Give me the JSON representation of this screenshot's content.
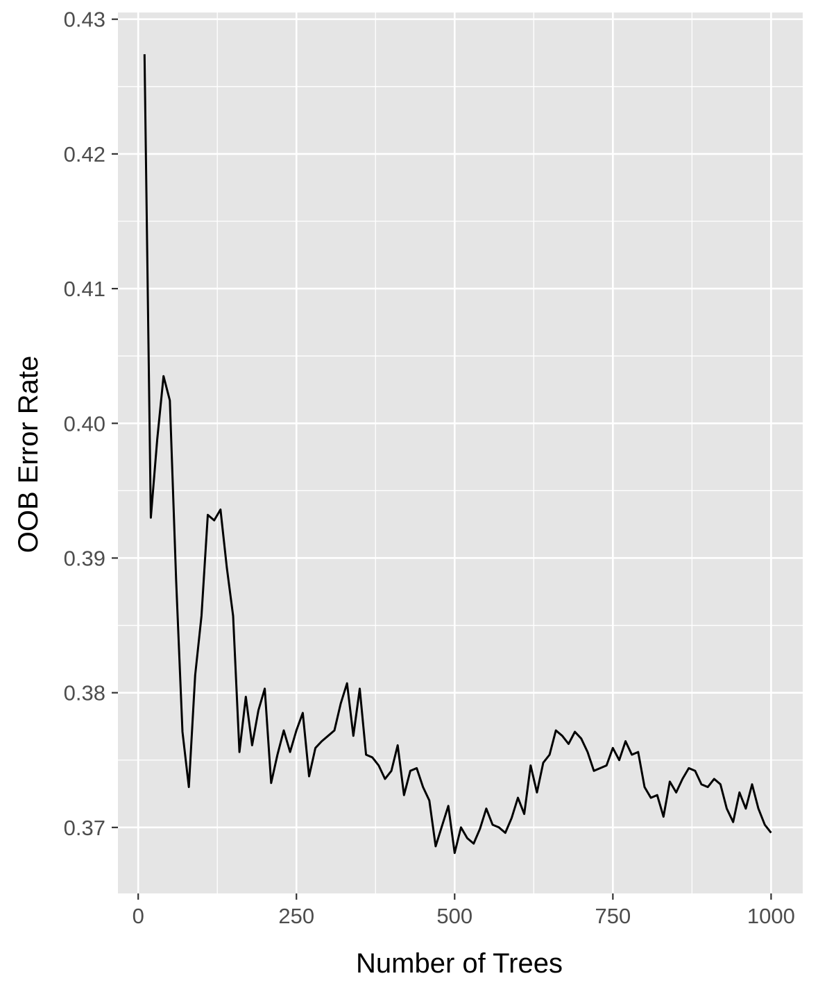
{
  "chart_data": {
    "type": "line",
    "title": "",
    "xlabel": "Number of Trees",
    "ylabel": "OOB Error Rate",
    "xlim": [
      -32,
      1050
    ],
    "ylim": [
      0.3651,
      0.4305
    ],
    "x_ticks": [
      0,
      250,
      500,
      750,
      1000
    ],
    "x_tick_labels": [
      "0",
      "250",
      "500",
      "750",
      "1000"
    ],
    "y_ticks": [
      0.37,
      0.38,
      0.39,
      0.4,
      0.41,
      0.42,
      0.43
    ],
    "y_tick_labels": [
      "0.37",
      "0.38",
      "0.39",
      "0.40",
      "0.41",
      "0.42",
      "0.43"
    ],
    "grid": true,
    "legend": "none",
    "colors": {
      "panel": "#e5e5e5",
      "grid": "#ffffff",
      "line": "#000000",
      "tick_text": "#4d4d4d",
      "tick_mark": "#333333"
    },
    "series": [
      {
        "x": [
          10,
          20,
          30,
          40,
          50,
          60,
          70,
          80,
          90,
          100,
          110,
          120,
          130,
          140,
          150,
          160,
          170,
          180,
          190,
          200,
          210,
          220,
          230,
          240,
          250,
          260,
          270,
          280,
          290,
          300,
          310,
          320,
          330,
          340,
          350,
          360,
          370,
          380,
          390,
          400,
          410,
          420,
          430,
          440,
          450,
          460,
          470,
          480,
          490,
          500,
          510,
          520,
          530,
          540,
          550,
          560,
          570,
          580,
          590,
          600,
          610,
          620,
          630,
          640,
          650,
          660,
          670,
          680,
          690,
          700,
          710,
          720,
          730,
          740,
          750,
          760,
          770,
          780,
          790,
          800,
          810,
          820,
          830,
          840,
          850,
          860,
          870,
          880,
          890,
          900,
          910,
          920,
          930,
          940,
          950,
          960,
          970,
          980,
          990,
          1000
        ],
        "y": [
          0.4274,
          0.393,
          0.3988,
          0.4035,
          0.4017,
          0.3883,
          0.3771,
          0.373,
          0.3813,
          0.3857,
          0.3932,
          0.3928,
          0.3936,
          0.3893,
          0.3857,
          0.3756,
          0.3797,
          0.3761,
          0.3787,
          0.3803,
          0.3733,
          0.3754,
          0.3772,
          0.3756,
          0.3772,
          0.3785,
          0.3738,
          0.3759,
          0.3764,
          0.3768,
          0.3772,
          0.3792,
          0.3807,
          0.3768,
          0.3803,
          0.3754,
          0.3752,
          0.3746,
          0.3736,
          0.3742,
          0.3761,
          0.3724,
          0.3742,
          0.3744,
          0.373,
          0.372,
          0.3686,
          0.3701,
          0.3716,
          0.3681,
          0.37,
          0.3692,
          0.3688,
          0.3699,
          0.3714,
          0.3702,
          0.37,
          0.3696,
          0.3707,
          0.3722,
          0.371,
          0.3746,
          0.3726,
          0.3748,
          0.3754,
          0.3772,
          0.3768,
          0.3762,
          0.3771,
          0.3766,
          0.3756,
          0.3742,
          0.3744,
          0.3746,
          0.3759,
          0.375,
          0.3764,
          0.3754,
          0.3756,
          0.373,
          0.3722,
          0.3724,
          0.3708,
          0.3734,
          0.3726,
          0.3736,
          0.3744,
          0.3742,
          0.3732,
          0.373,
          0.3736,
          0.3732,
          0.3714,
          0.3704,
          0.3726,
          0.3714,
          0.3732,
          0.3714,
          0.3702,
          0.3696
        ]
      }
    ]
  }
}
